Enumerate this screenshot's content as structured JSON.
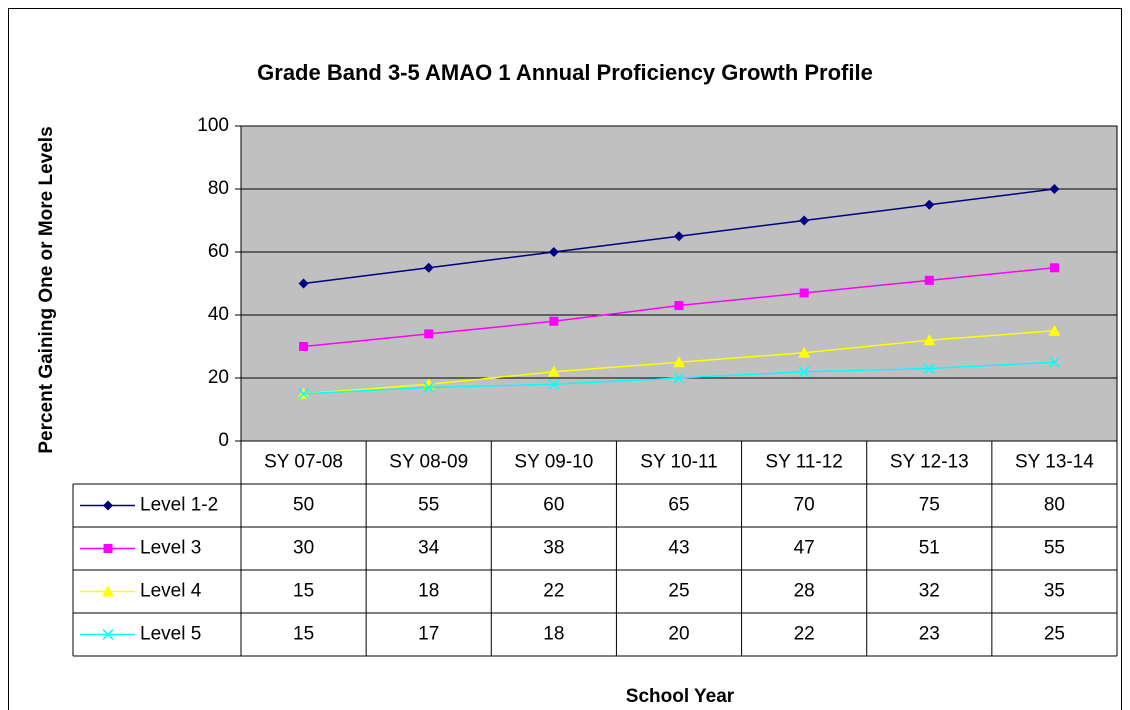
{
  "chart_data": {
    "type": "line",
    "title": "Grade Band 3-5 AMAO 1 Annual Proficiency Growth Profile",
    "x_label": "School Year",
    "y_label": "Percent Gaining One or More Levels",
    "categories": [
      "SY 07-08",
      "SY 08-09",
      "SY 09-10",
      "SY 10-11",
      "SY 11-12",
      "SY 12-13",
      "SY 13-14"
    ],
    "series": [
      {
        "name": "Level 1-2",
        "color": "#000080",
        "marker": "diamond",
        "values": [
          50,
          55,
          60,
          65,
          70,
          75,
          80
        ]
      },
      {
        "name": "Level 3",
        "color": "#ff00ff",
        "marker": "square",
        "values": [
          30,
          34,
          38,
          43,
          47,
          51,
          55
        ]
      },
      {
        "name": "Level 4",
        "color": "#ffff00",
        "marker": "triangle",
        "values": [
          15,
          18,
          22,
          25,
          28,
          32,
          35
        ]
      },
      {
        "name": "Level 5",
        "color": "#00ffff",
        "marker": "x",
        "values": [
          15,
          17,
          18,
          20,
          22,
          23,
          25
        ]
      }
    ],
    "ylim": [
      0,
      100
    ],
    "yticks": [
      0,
      20,
      40,
      60,
      80,
      100
    ],
    "grid": true,
    "plot_background": "#c0c0c0",
    "data_table": true
  }
}
